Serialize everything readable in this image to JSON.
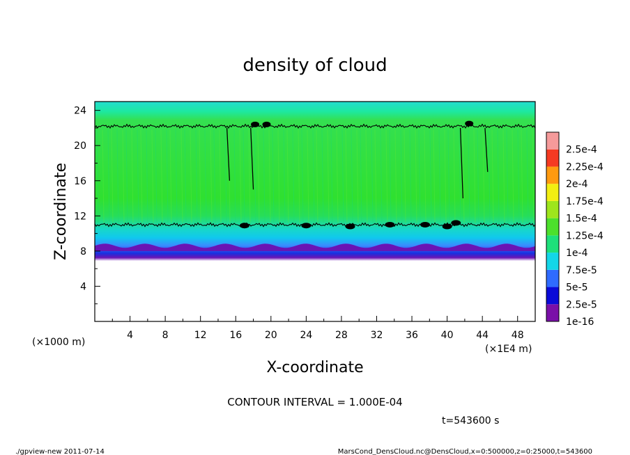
{
  "chart_data": {
    "type": "heatmap",
    "title": "density of cloud",
    "xlabel": "X-coordinate",
    "ylabel": "Z-coordinate",
    "x_unit_label": "(×1E4 m)",
    "y_unit_label": "(×1000 m)",
    "xlim": [
      0,
      50
    ],
    "ylim": [
      0,
      25
    ],
    "x_ticks": [
      "4",
      "8",
      "12",
      "16",
      "20",
      "24",
      "28",
      "32",
      "36",
      "40",
      "44",
      "48"
    ],
    "y_ticks": [
      "4",
      "8",
      "12",
      "16",
      "20",
      "24"
    ],
    "colorbar": {
      "labels": [
        "1e-16",
        "2.5e-5",
        "5e-5",
        "7.5e-5",
        "1e-4",
        "1.25e-4",
        "1.5e-4",
        "1.75e-4",
        "2e-4",
        "2.25e-4",
        "2.5e-4"
      ],
      "colors": [
        "#7a10a8",
        "#0a0ad8",
        "#2f6bff",
        "#13d6e8",
        "#1ee07a",
        "#4ce02c",
        "#9ee51c",
        "#f2ee12",
        "#ff9a10",
        "#f53a22",
        "#f59a9a"
      ]
    },
    "layers": [
      {
        "z_from": 8.0,
        "z_to": 8.5,
        "value_range": [
          "1e-16",
          "2.5e-5"
        ]
      },
      {
        "z_from": 8.5,
        "z_to": 9.5,
        "value_range": [
          "2.5e-5",
          "7.5e-5"
        ]
      },
      {
        "z_from": 9.5,
        "z_to": 11.0,
        "value_range": [
          "7.5e-5",
          "1e-4"
        ]
      },
      {
        "z_from": 11.0,
        "z_to": 22.0,
        "value_range": [
          "1e-4",
          "1.5e-4"
        ]
      },
      {
        "z_from": 22.0,
        "z_to": 25.0,
        "value_range": [
          "7.5e-5",
          "1e-4"
        ]
      }
    ],
    "contour_lines_z": [
      11.0,
      22.2
    ],
    "contour_interval_text": "CONTOUR INTERVAL = 1.000E-04",
    "time_text": "t=543600 s"
  },
  "footer": {
    "left": "./gpview-new  2011-07-14",
    "right": "MarsCond_DensCloud.nc@DensCloud,x=0:500000,z=0:25000,t=543600"
  }
}
